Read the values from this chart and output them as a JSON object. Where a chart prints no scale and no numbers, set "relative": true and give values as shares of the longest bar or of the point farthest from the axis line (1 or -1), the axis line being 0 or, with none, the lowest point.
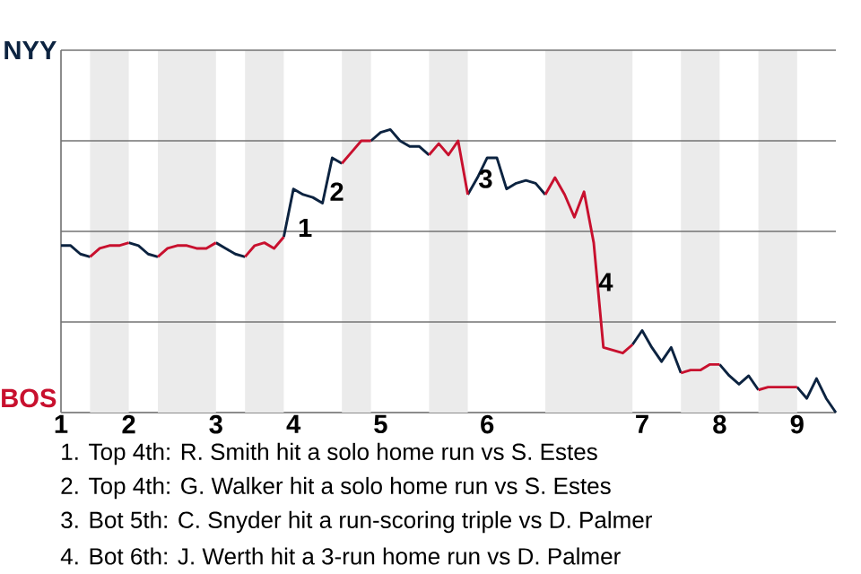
{
  "chart_data": {
    "type": "line",
    "relative": true,
    "grid": "y",
    "categories": [
      "1",
      null,
      null,
      null,
      null,
      null,
      null,
      "2",
      null,
      null,
      null,
      null,
      null,
      null,
      null,
      null,
      "3",
      null,
      null,
      null,
      null,
      null,
      null,
      null,
      "4",
      null,
      null,
      null,
      null,
      null,
      null,
      null,
      null,
      "5",
      null,
      null,
      null,
      null,
      null,
      null,
      null,
      null,
      null,
      null,
      "6",
      null,
      null,
      null,
      null,
      null,
      null,
      null,
      null,
      null,
      null,
      null,
      null,
      null,
      null,
      null,
      "7",
      null,
      null,
      null,
      null,
      null,
      null,
      null,
      "8",
      null,
      null,
      null,
      null,
      null,
      null,
      null,
      "9",
      null,
      null,
      null,
      null
    ],
    "series": [
      {
        "color": "#0c2340",
        "values": [
          0.59,
          0.59,
          0.56,
          0.55,
          null,
          null,
          null,
          0.6,
          0.59,
          0.56,
          0.55,
          null,
          null,
          null,
          null,
          null,
          0.6,
          0.58,
          0.56,
          0.55,
          null,
          null,
          null,
          0.62,
          0.79,
          0.77,
          0.76,
          0.74,
          0.9,
          0.88,
          null,
          null,
          0.96,
          0.99,
          1,
          0.96,
          0.94,
          0.94,
          0.91,
          null,
          null,
          null,
          0.77,
          0.83,
          0.9,
          0.9,
          0.79,
          0.81,
          0.82,
          0.81,
          0.77,
          null,
          null,
          null,
          null,
          null,
          null,
          null,
          null,
          0.24,
          0.29,
          0.23,
          0.18,
          0.23,
          0.14,
          null,
          null,
          null,
          0.17,
          0.13,
          0.1,
          0.13,
          0.08,
          null,
          null,
          null,
          0.09,
          0.05,
          0.12,
          0.05,
          0
        ]
      },
      {
        "color": "#c8102e",
        "values": [
          null,
          null,
          null,
          0.55,
          0.58,
          0.59,
          0.59,
          0.6,
          null,
          null,
          0.55,
          0.58,
          0.59,
          0.59,
          0.58,
          0.58,
          0.6,
          null,
          null,
          0.55,
          0.59,
          0.6,
          0.58,
          0.62,
          null,
          null,
          null,
          null,
          null,
          0.88,
          0.92,
          0.96,
          0.96,
          null,
          null,
          null,
          null,
          null,
          0.91,
          0.95,
          0.91,
          0.96,
          0.77,
          null,
          null,
          null,
          null,
          null,
          null,
          null,
          0.77,
          0.83,
          0.77,
          0.69,
          0.78,
          0.6,
          0.23,
          0.22,
          0.21,
          0.24,
          null,
          null,
          null,
          null,
          0.14,
          0.15,
          0.15,
          0.17,
          0.17,
          null,
          null,
          null,
          0.08,
          0.09,
          0.09,
          0.09,
          0.09,
          null,
          null,
          null,
          null
        ]
      }
    ],
    "annotations": [
      "NYY",
      "BOS",
      "1",
      "2",
      "3",
      "4",
      "1. Top 4th: R. Smith hit a solo home run vs S. Estes",
      "2. Top 4th: G. Walker hit a solo home run vs S. Estes",
      "3. Bot 5th: C. Snyder hit a run-scoring triple vs D. Palmer",
      "4. Bot 6th: J. Werth hit a 3-run home run vs D. Palmer"
    ]
  }
}
